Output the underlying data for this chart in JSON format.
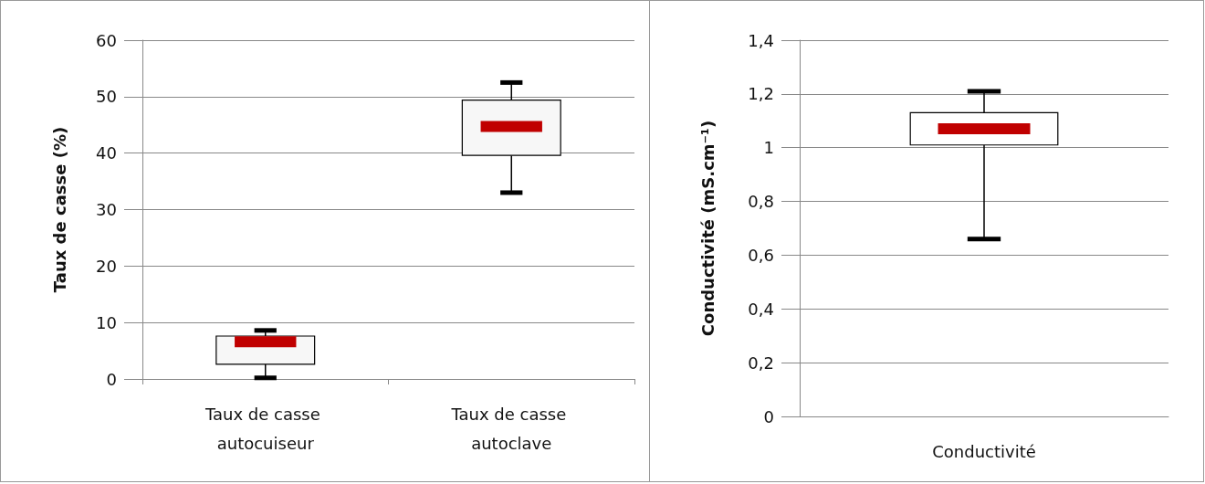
{
  "chart_data": [
    {
      "type": "box",
      "ylabel": "Taux de casse (%)",
      "categories": [
        "Taux de casse autocuiseur",
        "Taux de casse autoclave"
      ],
      "series": [
        {
          "color": "#f7f7f7",
          "boxes": [
            {
              "low": 0.2,
              "q1": 2.6,
              "median": 6.6,
              "q3": 7.6,
              "high": 8.6
            },
            {
              "low": 33.0,
              "q1": 39.6,
              "median": 44.7,
              "q3": 49.4,
              "high": 52.5
            }
          ]
        }
      ],
      "ylim": [
        0,
        60
      ],
      "yticks": [
        0,
        10,
        20,
        30,
        40,
        50,
        60
      ],
      "grid": "y"
    },
    {
      "type": "box",
      "ylabel": "Conductivité (mS.cm⁻¹)",
      "categories": [
        "Conductivité"
      ],
      "series": [
        {
          "color": "#ffffff",
          "boxes": [
            {
              "low": 0.66,
              "q1": 1.01,
              "median": 1.07,
              "q3": 1.13,
              "high": 1.21
            }
          ]
        }
      ],
      "ylim": [
        0,
        1.4
      ],
      "yticks": [
        0,
        {
          "value": 0.2,
          "label": "0,2"
        },
        {
          "value": 0.4,
          "label": "0,4"
        },
        {
          "value": 0.6,
          "label": "0,6"
        },
        {
          "value": 0.8,
          "label": "0,8"
        },
        1,
        {
          "value": 1.2,
          "label": "1,2"
        },
        {
          "value": 1.4,
          "label": "1,4"
        }
      ],
      "grid": "y"
    }
  ]
}
